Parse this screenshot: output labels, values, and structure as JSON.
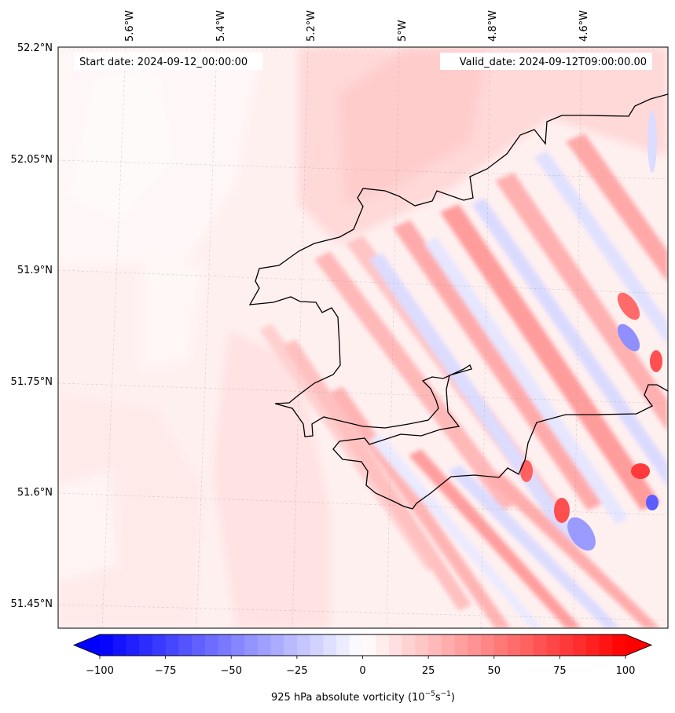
{
  "map": {
    "start_label": "Start date: 2024-09-12_00:00:00",
    "valid_label": "Valid_date: 2024-09-12T09:00:00.00",
    "lat_labels": [
      "52.2°N",
      "52.05°N",
      "51.9°N",
      "51.75°N",
      "51.6°N",
      "51.45°N"
    ],
    "lon_labels": [
      "5.6°W",
      "5.4°W",
      "5.2°W",
      "5°W",
      "4.8°W",
      "4.6°W"
    ],
    "field_name": "925 hPa absolute vorticity",
    "colormap": "bwr",
    "colors": {
      "min": "#0000ff",
      "mid": "#ffffff",
      "max": "#ff0000",
      "coast": "#000000"
    }
  },
  "colorbar": {
    "ticks": [
      "−100",
      "−75",
      "−50",
      "−25",
      "0",
      "25",
      "50",
      "75",
      "100"
    ],
    "tick_values": [
      -100,
      -75,
      -50,
      -25,
      0,
      25,
      50,
      75,
      100
    ],
    "levels_min": -100,
    "levels_max": 100,
    "n_levels": 40,
    "label": "925 hPa absolute vorticity (10",
    "label_exp1": "−5",
    "label_mid": "s",
    "label_exp2": "−1",
    "label_end": ")"
  }
}
